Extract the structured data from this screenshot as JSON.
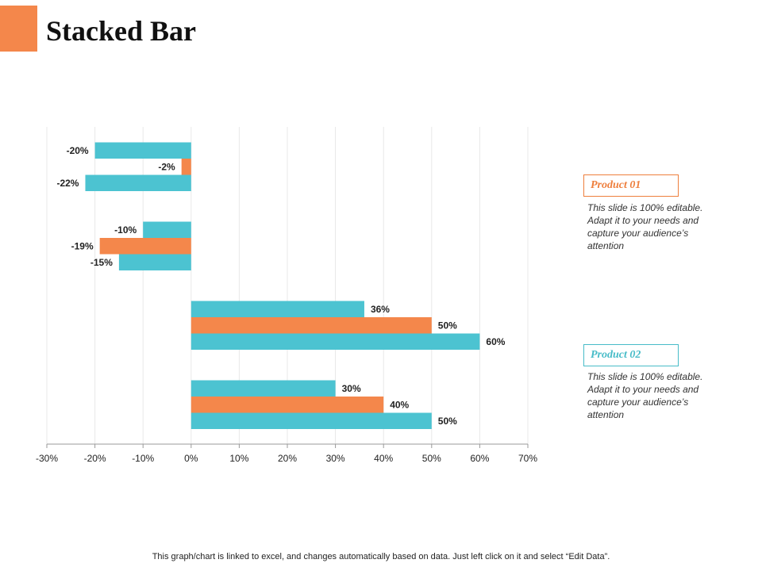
{
  "page": {
    "title": "Stacked Bar",
    "footnote": "This graph/chart is linked to excel, and changes automatically based on data. Just left click on it and select “Edit Data”."
  },
  "legend": [
    {
      "label": "Product 01",
      "color": "#ee7f3d",
      "description": "This slide is 100% editable. Adapt it to your needs and capture your audience’s attention"
    },
    {
      "label": "Product 02",
      "color": "#48bcc8",
      "description": "This slide is 100% editable. Adapt it to your needs and capture your audience’s attention"
    }
  ],
  "colors": {
    "accent": "#f4874b",
    "teal": "#4cc3d1",
    "orange": "#f4874b",
    "grid": "#e8e8e8",
    "axis": "#999999"
  },
  "chart_data": {
    "type": "bar",
    "orientation": "horizontal",
    "title": "",
    "xlabel": "",
    "ylabel": "",
    "xlim": [
      -30,
      70
    ],
    "xticks": [
      -30,
      -20,
      -10,
      0,
      10,
      20,
      30,
      40,
      50,
      60,
      70
    ],
    "tick_format": "percent",
    "grid": true,
    "groups": [
      {
        "bars": [
          {
            "value": -20,
            "label": "-20%",
            "color": "teal"
          },
          {
            "value": -2,
            "label": "-2%",
            "color": "orange"
          },
          {
            "value": -22,
            "label": "-22%",
            "color": "teal"
          }
        ]
      },
      {
        "bars": [
          {
            "value": -10,
            "label": "-10%",
            "color": "teal"
          },
          {
            "value": -19,
            "label": "-19%",
            "color": "orange"
          },
          {
            "value": -15,
            "label": "-15%",
            "color": "teal"
          }
        ]
      },
      {
        "bars": [
          {
            "value": 36,
            "label": "36%",
            "color": "teal"
          },
          {
            "value": 50,
            "label": "50%",
            "color": "orange"
          },
          {
            "value": 60,
            "label": "60%",
            "color": "teal"
          }
        ]
      },
      {
        "bars": [
          {
            "value": 30,
            "label": "30%",
            "color": "teal"
          },
          {
            "value": 40,
            "label": "40%",
            "color": "orange"
          },
          {
            "value": 50,
            "label": "50%",
            "color": "teal"
          }
        ]
      }
    ]
  }
}
